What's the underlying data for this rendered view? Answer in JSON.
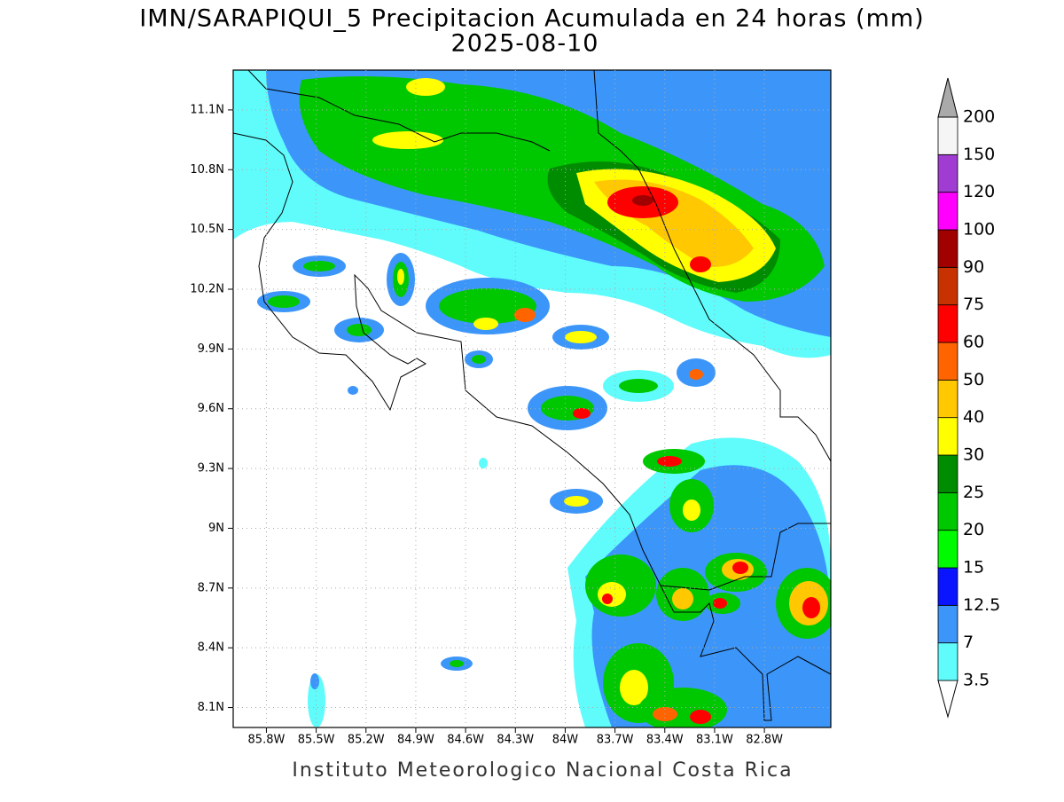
{
  "title": "IMN/SARAPIQUI_5 Precipitacion Acumulada en 24 horas (mm)",
  "subtitle": "2025-08-10",
  "footer": "Instituto Meteorologico Nacional Costa Rica",
  "map": {
    "lonlim": [
      -86.0,
      -82.4
    ],
    "latlim": [
      8.0,
      11.3
    ],
    "grid": true,
    "lat_ticks": [
      {
        "value": 11.1,
        "label": "11.1N"
      },
      {
        "value": 10.8,
        "label": "10.8N"
      },
      {
        "value": 10.5,
        "label": "10.5N"
      },
      {
        "value": 10.2,
        "label": "10.2N"
      },
      {
        "value": 9.9,
        "label": "9.9N"
      },
      {
        "value": 9.6,
        "label": "9.6N"
      },
      {
        "value": 9.3,
        "label": "9.3N"
      },
      {
        "value": 9,
        "label": "9N"
      },
      {
        "value": 8.7,
        "label": "8.7N"
      },
      {
        "value": 8.4,
        "label": "8.4N"
      },
      {
        "value": 8.1,
        "label": "8.1N"
      }
    ],
    "lon_ticks": [
      {
        "value": -85.8,
        "label": "85.8W"
      },
      {
        "value": -85.5,
        "label": "85.5W"
      },
      {
        "value": -85.2,
        "label": "85.2W"
      },
      {
        "value": -84.9,
        "label": "84.9W"
      },
      {
        "value": -84.6,
        "label": "84.6W"
      },
      {
        "value": -84.3,
        "label": "84.3W"
      },
      {
        "value": -84,
        "label": "84W"
      },
      {
        "value": -83.7,
        "label": "83.7W"
      },
      {
        "value": -83.4,
        "label": "83.4W"
      },
      {
        "value": -83.1,
        "label": "83.1W"
      },
      {
        "value": -82.8,
        "label": "82.8W"
      }
    ]
  },
  "colorbar": {
    "levels": [
      3.5,
      7,
      12.5,
      15,
      20,
      25,
      30,
      40,
      50,
      60,
      75,
      90,
      100,
      120,
      150,
      200
    ],
    "colors": [
      "#ffffff",
      "#60fcfc",
      "#3c96fa",
      "#0a14ff",
      "#00fa00",
      "#00c800",
      "#008c00",
      "#ffff00",
      "#ffc800",
      "#ff6400",
      "#ff0000",
      "#c83200",
      "#a00000",
      "#ff00ff",
      "#a03cd2",
      "#f5f5f5",
      "#aaaaaa"
    ]
  }
}
